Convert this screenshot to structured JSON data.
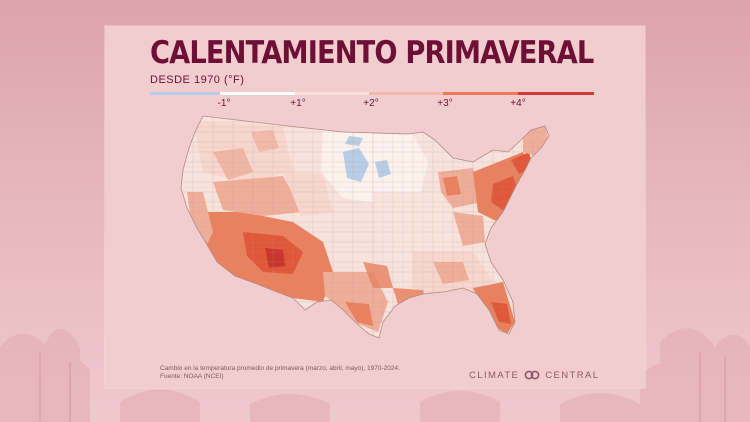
{
  "title": "CALENTAMIENTO PRIMAVERAL",
  "subtitle": "DESDE 1970 (°F)",
  "legend": {
    "ticks": [
      "-1°",
      "+1°",
      "+2°",
      "+3°",
      "+4°"
    ],
    "colors": [
      "#b9cde8",
      "#ffffff",
      "#f9e0da",
      "#f2b9a8",
      "#eb7a5a",
      "#d23a35"
    ]
  },
  "map_colors": {
    "cool": "#b8cde6",
    "none": "#fbf2ee",
    "light": "#f6d6cd",
    "mid": "#efae9a",
    "warm": "#e9815f",
    "hot": "#e0573a",
    "hottest": "#c9352c",
    "border": "#c29a90"
  },
  "caption_line1": "Cambio en la temperatura promedio de primavera (marzo, abril, mayo), 1970-2024.",
  "caption_line2": "Fuente: NOAA (NCEI)",
  "logo": {
    "left": "CLIMATE",
    "right": "CENTRAL"
  }
}
